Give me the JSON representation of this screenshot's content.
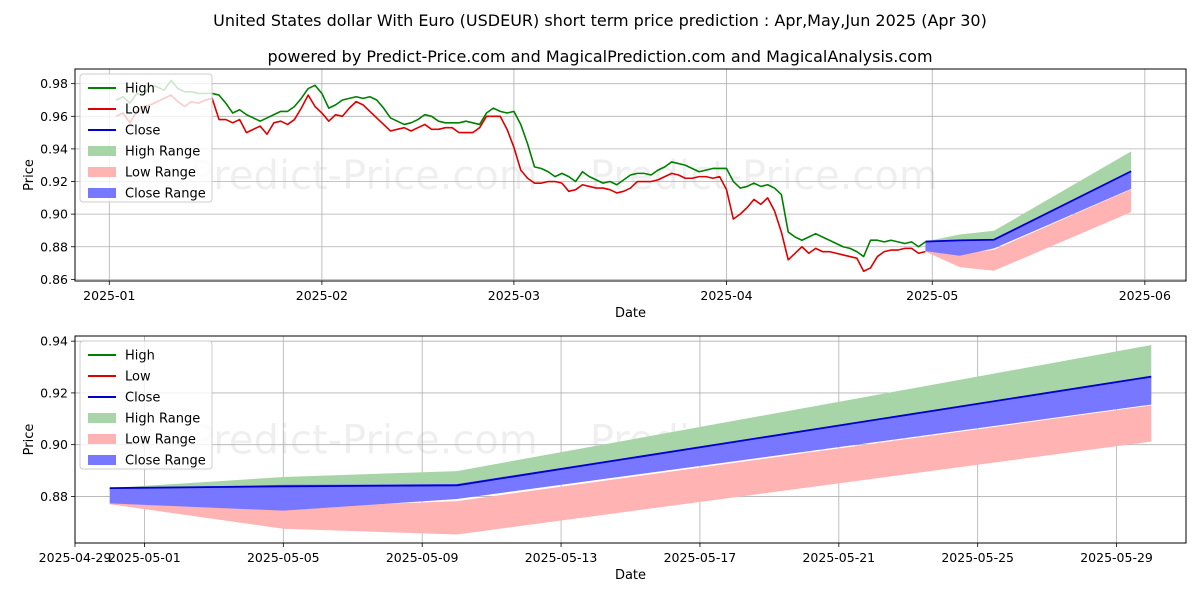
{
  "title_line1": "United States dollar With Euro (USDEUR) short term price prediction : Apr,May,Jun 2025 (Apr 30)",
  "title_line2": "powered by Predict-Price.com and MagicalPrediction.com and MagicalAnalysis.com",
  "watermark": "Predict-Price.com",
  "colors": {
    "high": "#008000",
    "low": "#dd0000",
    "close": "#0000cc",
    "high_range": "#a8d5a8",
    "low_range": "#ffb3b3",
    "close_range": "#7777ff"
  },
  "legend": [
    "High",
    "Low",
    "Close",
    "High Range",
    "Low Range",
    "Close Range"
  ],
  "chart_data": [
    {
      "type": "line",
      "xlabel": "Date",
      "ylabel": "Price",
      "xlim": [
        "2024-12-27",
        "2025-06-07"
      ],
      "ylim": [
        0.859,
        0.989
      ],
      "x_ticks": [
        "2025-01-01",
        "2025-02-01",
        "2025-03-01",
        "2025-04-01",
        "2025-05-01",
        "2025-06-01"
      ],
      "x_tick_labels": [
        "2025-01",
        "2025-02",
        "2025-03",
        "2025-04",
        "2025-05",
        "2025-06"
      ],
      "y_ticks": [
        "0.86",
        "0.88",
        "0.90",
        "0.92",
        "0.94",
        "0.96",
        "0.98"
      ],
      "grid": true,
      "legend_position": "upper-left",
      "history": {
        "dates": [
          "2025-01-02",
          "2025-01-03",
          "2025-01-04",
          "2025-01-05",
          "2025-01-06",
          "2025-01-07",
          "2025-01-08",
          "2025-01-09",
          "2025-01-10",
          "2025-01-11",
          "2025-01-12",
          "2025-01-13",
          "2025-01-14",
          "2025-01-15",
          "2025-01-16",
          "2025-01-17",
          "2025-01-18",
          "2025-01-19",
          "2025-01-20",
          "2025-01-21",
          "2025-01-22",
          "2025-01-23",
          "2025-01-24",
          "2025-01-25",
          "2025-01-26",
          "2025-01-27",
          "2025-01-28",
          "2025-01-29",
          "2025-01-30",
          "2025-01-31",
          "2025-02-01",
          "2025-02-02",
          "2025-02-03",
          "2025-02-04",
          "2025-02-05",
          "2025-02-06",
          "2025-02-07",
          "2025-02-08",
          "2025-02-09",
          "2025-02-10",
          "2025-02-11",
          "2025-02-12",
          "2025-02-13",
          "2025-02-14",
          "2025-02-15",
          "2025-02-16",
          "2025-02-17",
          "2025-02-18",
          "2025-02-19",
          "2025-02-20",
          "2025-02-21",
          "2025-02-22",
          "2025-02-23",
          "2025-02-24",
          "2025-02-25",
          "2025-02-26",
          "2025-02-27",
          "2025-02-28",
          "2025-03-01",
          "2025-03-02",
          "2025-03-03",
          "2025-03-04",
          "2025-03-05",
          "2025-03-06",
          "2025-03-07",
          "2025-03-08",
          "2025-03-09",
          "2025-03-10",
          "2025-03-11",
          "2025-03-12",
          "2025-03-13",
          "2025-03-14",
          "2025-03-15",
          "2025-03-16",
          "2025-03-17",
          "2025-03-18",
          "2025-03-19",
          "2025-03-20",
          "2025-03-21",
          "2025-03-22",
          "2025-03-23",
          "2025-03-24",
          "2025-03-25",
          "2025-03-26",
          "2025-03-27",
          "2025-03-28",
          "2025-03-29",
          "2025-03-30",
          "2025-03-31",
          "2025-04-01",
          "2025-04-02",
          "2025-04-03",
          "2025-04-04",
          "2025-04-05",
          "2025-04-06",
          "2025-04-07",
          "2025-04-08",
          "2025-04-09",
          "2025-04-10",
          "2025-04-11",
          "2025-04-12",
          "2025-04-13",
          "2025-04-14",
          "2025-04-15",
          "2025-04-16",
          "2025-04-17",
          "2025-04-18",
          "2025-04-19",
          "2025-04-20",
          "2025-04-21",
          "2025-04-22",
          "2025-04-23",
          "2025-04-24",
          "2025-04-25",
          "2025-04-26",
          "2025-04-27",
          "2025-04-28",
          "2025-04-29",
          "2025-04-30"
        ],
        "high": [
          0.97,
          0.972,
          0.968,
          0.974,
          0.973,
          0.979,
          0.978,
          0.976,
          0.982,
          0.977,
          0.975,
          0.975,
          0.974,
          0.974,
          0.974,
          0.973,
          0.968,
          0.962,
          0.964,
          0.961,
          0.959,
          0.957,
          0.959,
          0.961,
          0.963,
          0.963,
          0.966,
          0.971,
          0.977,
          0.979,
          0.974,
          0.965,
          0.967,
          0.97,
          0.971,
          0.972,
          0.971,
          0.972,
          0.97,
          0.965,
          0.959,
          0.957,
          0.955,
          0.956,
          0.958,
          0.961,
          0.96,
          0.957,
          0.956,
          0.956,
          0.956,
          0.957,
          0.956,
          0.955,
          0.962,
          0.965,
          0.963,
          0.962,
          0.963,
          0.955,
          0.943,
          0.929,
          0.928,
          0.926,
          0.923,
          0.925,
          0.923,
          0.92,
          0.926,
          0.923,
          0.921,
          0.919,
          0.92,
          0.918,
          0.921,
          0.924,
          0.925,
          0.925,
          0.924,
          0.927,
          0.929,
          0.932,
          0.931,
          0.93,
          0.928,
          0.926,
          0.927,
          0.928,
          0.928,
          0.928,
          0.92,
          0.916,
          0.917,
          0.919,
          0.917,
          0.918,
          0.916,
          0.912,
          0.889,
          0.886,
          0.884,
          0.886,
          0.888,
          0.886,
          0.884,
          0.882,
          0.88,
          0.879,
          0.877,
          0.874,
          0.884,
          0.884,
          0.883,
          0.884,
          0.883,
          0.882,
          0.883,
          0.88,
          0.883
        ],
        "low": [
          0.96,
          0.962,
          0.956,
          0.963,
          0.966,
          0.967,
          0.969,
          0.971,
          0.973,
          0.969,
          0.966,
          0.969,
          0.968,
          0.97,
          0.971,
          0.958,
          0.958,
          0.956,
          0.958,
          0.95,
          0.952,
          0.954,
          0.949,
          0.956,
          0.957,
          0.955,
          0.958,
          0.965,
          0.973,
          0.966,
          0.962,
          0.957,
          0.961,
          0.96,
          0.965,
          0.969,
          0.967,
          0.963,
          0.959,
          0.955,
          0.951,
          0.952,
          0.953,
          0.951,
          0.953,
          0.955,
          0.952,
          0.952,
          0.953,
          0.953,
          0.95,
          0.95,
          0.95,
          0.953,
          0.96,
          0.96,
          0.96,
          0.952,
          0.941,
          0.927,
          0.922,
          0.919,
          0.919,
          0.92,
          0.92,
          0.919,
          0.914,
          0.915,
          0.918,
          0.917,
          0.916,
          0.916,
          0.915,
          0.913,
          0.914,
          0.916,
          0.92,
          0.92,
          0.92,
          0.921,
          0.923,
          0.925,
          0.924,
          0.922,
          0.922,
          0.923,
          0.923,
          0.922,
          0.923,
          0.915,
          0.897,
          0.9,
          0.904,
          0.909,
          0.906,
          0.91,
          0.902,
          0.889,
          0.872,
          0.876,
          0.88,
          0.876,
          0.879,
          0.877,
          0.877,
          0.876,
          0.875,
          0.874,
          0.873,
          0.865,
          0.867,
          0.874,
          0.877,
          0.878,
          0.878,
          0.879,
          0.879,
          0.876,
          0.877
        ]
      },
      "forecast": {
        "dates": [
          "2025-04-30",
          "2025-05-05",
          "2025-05-10",
          "2025-05-30"
        ],
        "close": [
          0.8832,
          0.8839,
          0.8843,
          0.9263
        ],
        "high_range_upper": [
          0.8832,
          0.8875,
          0.8898,
          0.9385
        ],
        "high_range_lower": [
          0.8812,
          0.8793,
          0.8808,
          0.9182
        ],
        "low_range_upper": [
          0.879,
          0.8756,
          0.8782,
          0.9152
        ],
        "low_range_lower": [
          0.877,
          0.8675,
          0.8653,
          0.9012
        ],
        "close_range_upper": [
          0.8832,
          0.8845,
          0.8848,
          0.9264
        ],
        "close_range_lower": [
          0.8773,
          0.8745,
          0.879,
          0.9155
        ]
      }
    },
    {
      "type": "line",
      "xlabel": "Date",
      "ylabel": "Price",
      "xlim": [
        "2025-04-29",
        "2025-05-31"
      ],
      "ylim": [
        0.862,
        0.942
      ],
      "x_ticks": [
        "2025-04-29",
        "2025-05-01",
        "2025-05-05",
        "2025-05-09",
        "2025-05-13",
        "2025-05-17",
        "2025-05-21",
        "2025-05-25",
        "2025-05-29"
      ],
      "y_ticks": [
        "0.88",
        "0.90",
        "0.92",
        "0.94"
      ],
      "grid": true,
      "legend_position": "upper-left"
    }
  ]
}
